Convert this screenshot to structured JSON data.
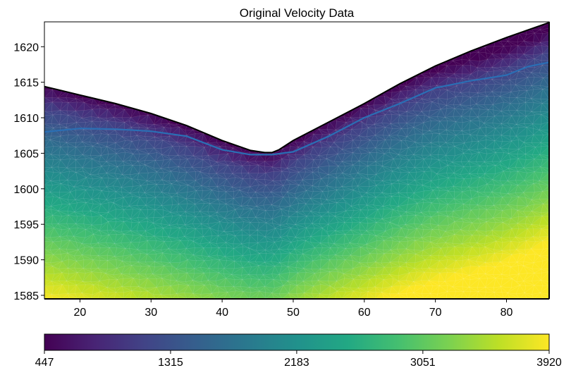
{
  "chart_data": {
    "type": "heatmap",
    "title": "Original Velocity Data",
    "xlabel": "",
    "ylabel": "",
    "xlim": [
      15,
      86
    ],
    "ylim": [
      1584.5,
      1623.5
    ],
    "x_ticks": [
      20,
      30,
      40,
      50,
      60,
      70,
      80
    ],
    "y_ticks": [
      1585,
      1590,
      1595,
      1600,
      1605,
      1610,
      1615,
      1620
    ],
    "grid": false,
    "colormap": "viridis",
    "colorbar": {
      "orientation": "horizontal",
      "range": [
        447,
        3920
      ],
      "ticks": [
        447,
        1315,
        2183,
        3051,
        3920
      ]
    },
    "surface_profile": [
      [
        15,
        1614.4
      ],
      [
        20,
        1613.2
      ],
      [
        25,
        1612.0
      ],
      [
        30,
        1610.6
      ],
      [
        35,
        1608.9
      ],
      [
        40,
        1606.8
      ],
      [
        44,
        1605.4
      ],
      [
        46,
        1605.1
      ],
      [
        47,
        1605.1
      ],
      [
        48,
        1605.5
      ],
      [
        50,
        1606.8
      ],
      [
        55,
        1609.4
      ],
      [
        60,
        1612.0
      ],
      [
        65,
        1614.8
      ],
      [
        70,
        1617.3
      ],
      [
        75,
        1619.4
      ],
      [
        80,
        1621.3
      ],
      [
        86,
        1623.4
      ]
    ],
    "contour_line": [
      [
        15,
        1608.0
      ],
      [
        20,
        1608.5
      ],
      [
        25,
        1608.4
      ],
      [
        30,
        1608.1
      ],
      [
        35,
        1607.4
      ],
      [
        40,
        1605.5
      ],
      [
        44,
        1604.8
      ],
      [
        47,
        1604.8
      ],
      [
        50,
        1605.2
      ],
      [
        55,
        1607.4
      ],
      [
        60,
        1610.0
      ],
      [
        65,
        1612.0
      ],
      [
        70,
        1614.2
      ],
      [
        75,
        1615.2
      ],
      [
        80,
        1616.0
      ],
      [
        83,
        1617.2
      ],
      [
        86,
        1617.8
      ]
    ],
    "velocity_samples": [
      {
        "depth_below_surface": 0,
        "value": 447
      },
      {
        "depth_below_surface": 3,
        "value": 1100
      },
      {
        "depth_below_surface": 8,
        "value": 1700
      },
      {
        "depth_below_surface": 14,
        "value": 2300
      },
      {
        "depth_below_surface": 20,
        "value": 2900
      },
      {
        "depth_below_surface": 26,
        "value": 3500
      },
      {
        "depth_below_surface": 30,
        "value": 3920
      }
    ],
    "colors": {
      "contour": "#2a6fb5",
      "surface": "#000000"
    }
  }
}
